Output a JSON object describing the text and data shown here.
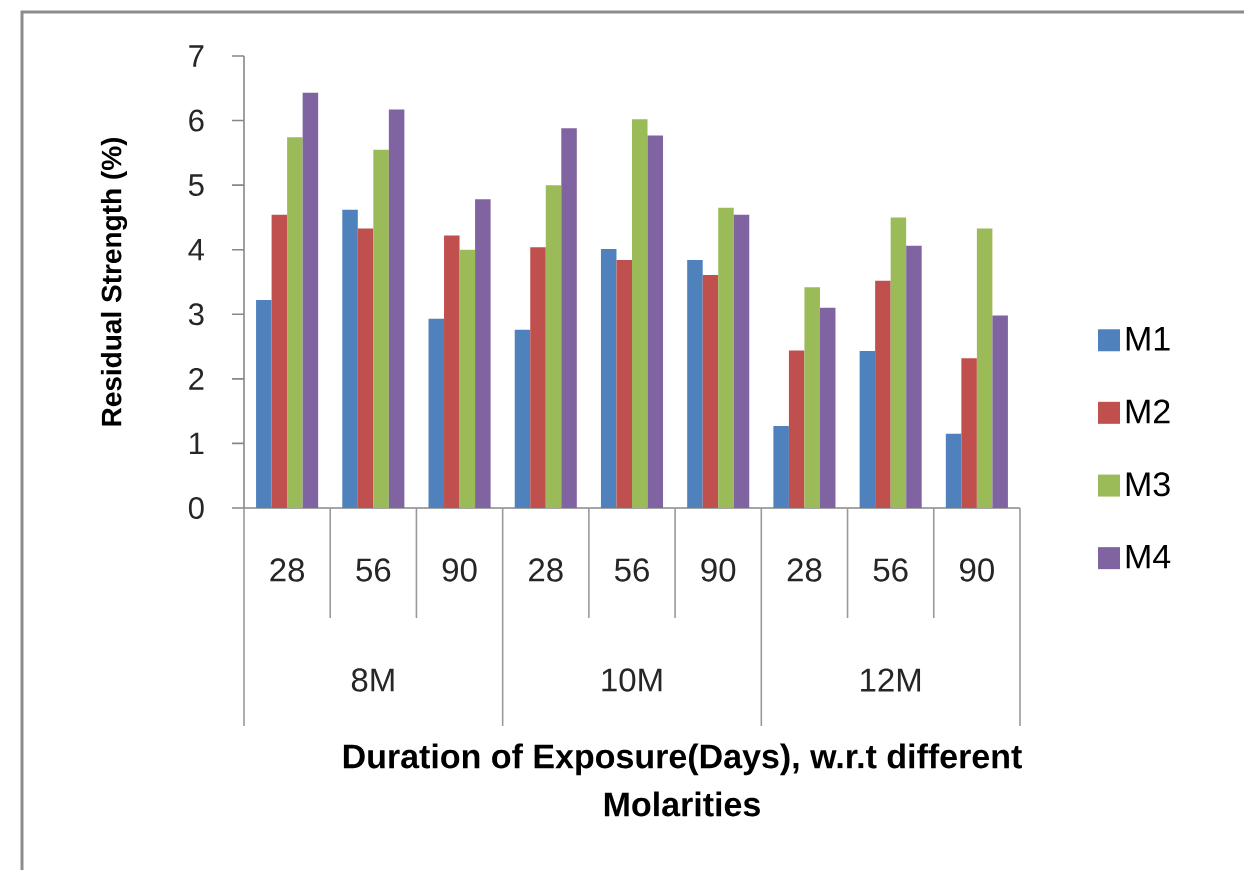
{
  "chart_data": {
    "type": "bar",
    "xlabel": "Duration of Exposure(Days), w.r.t different Molarities",
    "ylabel": "Residual Strength (%)",
    "categories": [
      "28",
      "56",
      "90",
      "28",
      "56",
      "90",
      "28",
      "56",
      "90"
    ],
    "annotations": [
      "8M",
      "10M",
      "12M"
    ],
    "series": [
      {
        "name": "M1",
        "color": "#4f81bd",
        "values": [
          3.22,
          4.62,
          2.93,
          2.76,
          4.01,
          3.84,
          1.27,
          2.43,
          1.15
        ]
      },
      {
        "name": "M2",
        "color": "#c0504d",
        "values": [
          4.54,
          4.33,
          4.22,
          4.04,
          3.84,
          3.61,
          2.44,
          3.52,
          2.32
        ]
      },
      {
        "name": "M3",
        "color": "#9bbb59",
        "values": [
          5.74,
          5.55,
          4.0,
          5.0,
          6.02,
          4.65,
          3.42,
          4.5,
          4.33
        ]
      },
      {
        "name": "M4",
        "color": "#8064a2",
        "values": [
          6.43,
          6.17,
          4.78,
          5.88,
          5.77,
          4.54,
          3.1,
          4.06,
          2.98
        ]
      }
    ],
    "ylim": [
      0,
      7
    ],
    "yticks": [
      0,
      1,
      2,
      3,
      4,
      5,
      6,
      7
    ],
    "legend": "right"
  }
}
